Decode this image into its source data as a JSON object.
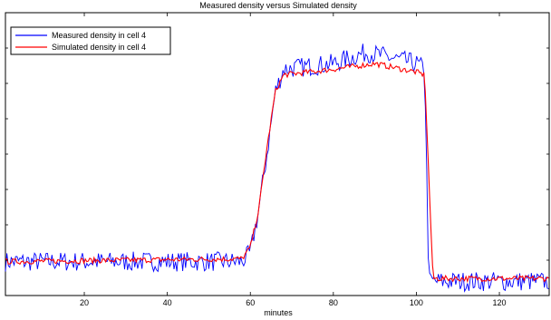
{
  "chart_data": {
    "type": "line",
    "title": "Measured density versus Simulated density",
    "xlabel": "minutes",
    "ylabel": "",
    "xlim": [
      1,
      132
    ],
    "ylim": [
      0,
      1
    ],
    "x_ticks": [
      20,
      40,
      60,
      80,
      100,
      120
    ],
    "y_ticks_labeled": false,
    "grid": false,
    "legend_position": "top-left",
    "series": [
      {
        "name": "Measured density in cell 4",
        "color": "#0000ff",
        "noise": 0.035,
        "points": [
          [
            1,
            0.12
          ],
          [
            58,
            0.12
          ],
          [
            60,
            0.15
          ],
          [
            62,
            0.3
          ],
          [
            64,
            0.5
          ],
          [
            66,
            0.72
          ],
          [
            68,
            0.8
          ],
          [
            80,
            0.82
          ],
          [
            88,
            0.86
          ],
          [
            100,
            0.82
          ],
          [
            102,
            0.8
          ],
          [
            103,
            0.05
          ],
          [
            132,
            0.05
          ]
        ]
      },
      {
        "name": "Simulated density in cell 4",
        "color": "#ff0000",
        "noise": 0.01,
        "points": [
          [
            1,
            0.12
          ],
          [
            58,
            0.13
          ],
          [
            60,
            0.17
          ],
          [
            62,
            0.3
          ],
          [
            64,
            0.52
          ],
          [
            66,
            0.72
          ],
          [
            68,
            0.78
          ],
          [
            80,
            0.8
          ],
          [
            90,
            0.82
          ],
          [
            100,
            0.79
          ],
          [
            102,
            0.78
          ],
          [
            104,
            0.06
          ],
          [
            132,
            0.06
          ]
        ]
      }
    ]
  }
}
